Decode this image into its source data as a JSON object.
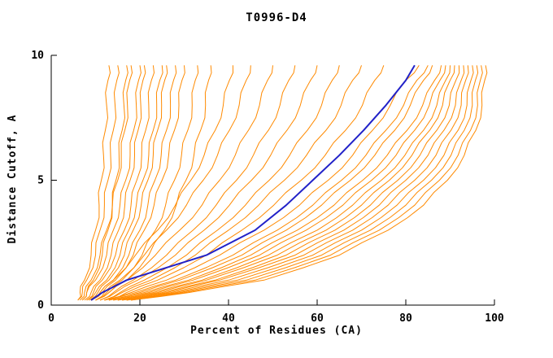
{
  "chart_data": {
    "type": "line",
    "title": "T0996-D4",
    "xlabel": "Percent of Residues (CA)",
    "ylabel": "Distance Cutoff, A",
    "xlim": [
      0,
      100
    ],
    "ylim": [
      0,
      10
    ],
    "x_ticks": [
      0,
      20,
      40,
      60,
      80,
      100
    ],
    "y_ticks": [
      0,
      5,
      10
    ],
    "legend": "none",
    "grid": false,
    "colors": {
      "model": "#FF8A00",
      "highlight": "#2121C8",
      "axis": "#000000",
      "background": "#FFFFFF"
    },
    "y_levels": [
      0.2,
      0.5,
      1,
      2,
      3,
      4,
      5,
      6,
      7,
      8,
      9,
      9.6
    ],
    "series": [
      {
        "name": "m01",
        "role": "model",
        "x": [
          6,
          6.5,
          7.5,
          9,
          10,
          10.8,
          11.3,
          11.8,
          12.2,
          12.5,
          12.8,
          13
        ]
      },
      {
        "name": "m02",
        "role": "model",
        "x": [
          6,
          7,
          8,
          10,
          11,
          12,
          12.8,
          13.4,
          14,
          14.4,
          14.8,
          15
        ]
      },
      {
        "name": "m03",
        "role": "model",
        "x": [
          7,
          8,
          9.5,
          11.5,
          12.8,
          13.8,
          14.6,
          15.3,
          16,
          16.4,
          16.8,
          17
        ]
      },
      {
        "name": "m04",
        "role": "model",
        "x": [
          6.5,
          7.5,
          9,
          11,
          12.5,
          13.8,
          15,
          15.8,
          16.6,
          17.2,
          17.7,
          18
        ]
      },
      {
        "name": "m05",
        "role": "model",
        "x": [
          7,
          8,
          10,
          12.5,
          14,
          15.5,
          16.8,
          17.8,
          18.6,
          19.2,
          19.7,
          20
        ]
      },
      {
        "name": "m06",
        "role": "model",
        "x": [
          7.5,
          9,
          11,
          13.5,
          15.2,
          16.6,
          17.8,
          18.8,
          19.6,
          20.2,
          20.7,
          21
        ]
      },
      {
        "name": "m07",
        "role": "model",
        "x": [
          8,
          9.5,
          11.5,
          14.5,
          16.5,
          18,
          19.3,
          20.4,
          21.3,
          22,
          22.6,
          23
        ]
      },
      {
        "name": "m08",
        "role": "model",
        "x": [
          8,
          10,
          12.5,
          15.5,
          17.5,
          19.2,
          20.7,
          22,
          23,
          23.8,
          24.5,
          25
        ]
      },
      {
        "name": "m09",
        "role": "model",
        "x": [
          8.5,
          10.5,
          13,
          16.5,
          18.5,
          20.3,
          21.8,
          23,
          24,
          24.9,
          25.6,
          26
        ]
      },
      {
        "name": "m10",
        "role": "model",
        "x": [
          9,
          11,
          14,
          17.5,
          20,
          21.8,
          23.4,
          24.8,
          26,
          26.9,
          27.6,
          28
        ]
      },
      {
        "name": "m11",
        "role": "model",
        "x": [
          9,
          11.5,
          14.5,
          18.5,
          21,
          23.2,
          25,
          26.5,
          27.8,
          28.8,
          29.5,
          30
        ]
      },
      {
        "name": "m12",
        "role": "model",
        "x": [
          10,
          12.5,
          16,
          20.5,
          23.5,
          25.8,
          27.8,
          29.4,
          30.8,
          31.8,
          32.5,
          33
        ]
      },
      {
        "name": "m13",
        "role": "model",
        "x": [
          10,
          13,
          17,
          22,
          25.5,
          28.2,
          30.4,
          32.2,
          33.7,
          34.8,
          35.5,
          36
        ]
      },
      {
        "name": "m14",
        "role": "model",
        "x": [
          9,
          11,
          14,
          19,
          24,
          28,
          31.5,
          34.5,
          37,
          38.8,
          40.2,
          41
        ]
      },
      {
        "name": "m15",
        "role": "model",
        "x": [
          10,
          12,
          15.5,
          21,
          26,
          30.5,
          34.3,
          37.5,
          40.2,
          42.4,
          44,
          45
        ]
      },
      {
        "name": "m16",
        "role": "model",
        "x": [
          10,
          13,
          17,
          23.5,
          29,
          34,
          38,
          41.5,
          44.5,
          47,
          48.8,
          50
        ]
      },
      {
        "name": "m17",
        "role": "model",
        "x": [
          11,
          14,
          18.5,
          26,
          32,
          37.2,
          41.8,
          45.6,
          49,
          51.6,
          53.6,
          55
        ]
      },
      {
        "name": "m18",
        "role": "model",
        "x": [
          11,
          14.5,
          19.5,
          28,
          34.5,
          40.2,
          45.2,
          49.5,
          53.2,
          56.2,
          58.5,
          60
        ]
      },
      {
        "name": "m19",
        "role": "model",
        "x": [
          12,
          15.5,
          21,
          30.5,
          37.5,
          43.8,
          49.2,
          53.8,
          57.8,
          61,
          63.4,
          65
        ]
      },
      {
        "name": "m20",
        "role": "model",
        "x": [
          12,
          16,
          22.5,
          32.5,
          40,
          46.8,
          52.6,
          57.6,
          62,
          65.4,
          68,
          70
        ]
      },
      {
        "name": "m21",
        "role": "model",
        "x": [
          13,
          17,
          24,
          35,
          43,
          50.2,
          56.4,
          61.8,
          66.4,
          70.2,
          73,
          75
        ]
      },
      {
        "name": "m22",
        "role": "model",
        "x": [
          12,
          18,
          26,
          38,
          48,
          56,
          62.5,
          68,
          72.5,
          76.5,
          80,
          83
        ]
      },
      {
        "name": "m23",
        "role": "model",
        "x": [
          12,
          19,
          28,
          41,
          51,
          59,
          65.5,
          71,
          75.5,
          79.5,
          82.5,
          85
        ]
      },
      {
        "name": "m24",
        "role": "model",
        "x": [
          13,
          20,
          29,
          43,
          53,
          61,
          67.5,
          73,
          77.5,
          81,
          84,
          86
        ]
      },
      {
        "name": "m25",
        "role": "model",
        "x": [
          13,
          21,
          31,
          45,
          55.5,
          63.8,
          70.3,
          75.8,
          80.3,
          83.8,
          86.5,
          88
        ]
      },
      {
        "name": "m26",
        "role": "model",
        "x": [
          14,
          22,
          32,
          47,
          57.5,
          65.8,
          72.3,
          77.8,
          82,
          85.3,
          87.7,
          89
        ]
      },
      {
        "name": "m27",
        "role": "model",
        "x": [
          14,
          23,
          34,
          49,
          60,
          68,
          74.5,
          79.8,
          84,
          87,
          89,
          90
        ]
      },
      {
        "name": "m28",
        "role": "model",
        "x": [
          15,
          24,
          35,
          51,
          62,
          70,
          76.3,
          81.4,
          85.4,
          88.3,
          90,
          91
        ]
      },
      {
        "name": "m29",
        "role": "model",
        "x": [
          15,
          25,
          37,
          53,
          64,
          72,
          78.2,
          83.2,
          87,
          89.8,
          91.3,
          92
        ]
      },
      {
        "name": "m30",
        "role": "model",
        "x": [
          16,
          26,
          38,
          55,
          66,
          74,
          80,
          85,
          88.6,
          91.2,
          92.5,
          93
        ]
      },
      {
        "name": "m31",
        "role": "model",
        "x": [
          16,
          27,
          40,
          57,
          68,
          76,
          82,
          86.8,
          90.2,
          92.5,
          93.5,
          94
        ]
      },
      {
        "name": "m32",
        "role": "model",
        "x": [
          17,
          28,
          42,
          59,
          70,
          78,
          84,
          88.6,
          91.8,
          93.8,
          94.7,
          95
        ]
      },
      {
        "name": "m33",
        "role": "model",
        "x": [
          17,
          29,
          44,
          61,
          72,
          80,
          85.8,
          90.2,
          93.2,
          95,
          95.7,
          96
        ]
      },
      {
        "name": "m34",
        "role": "model",
        "x": [
          18,
          30,
          46,
          63,
          74,
          82,
          87.6,
          91.8,
          94.6,
          96.2,
          96.8,
          97
        ]
      },
      {
        "name": "m35",
        "role": "model",
        "x": [
          18,
          31,
          48,
          65,
          76,
          84,
          89.4,
          93.2,
          95.8,
          97.2,
          97.8,
          98
        ]
      },
      {
        "name": "best-model",
        "role": "highlight",
        "x": [
          9,
          11.5,
          17,
          35,
          46,
          53,
          59,
          65,
          70.5,
          75.5,
          80,
          82
        ]
      }
    ]
  }
}
